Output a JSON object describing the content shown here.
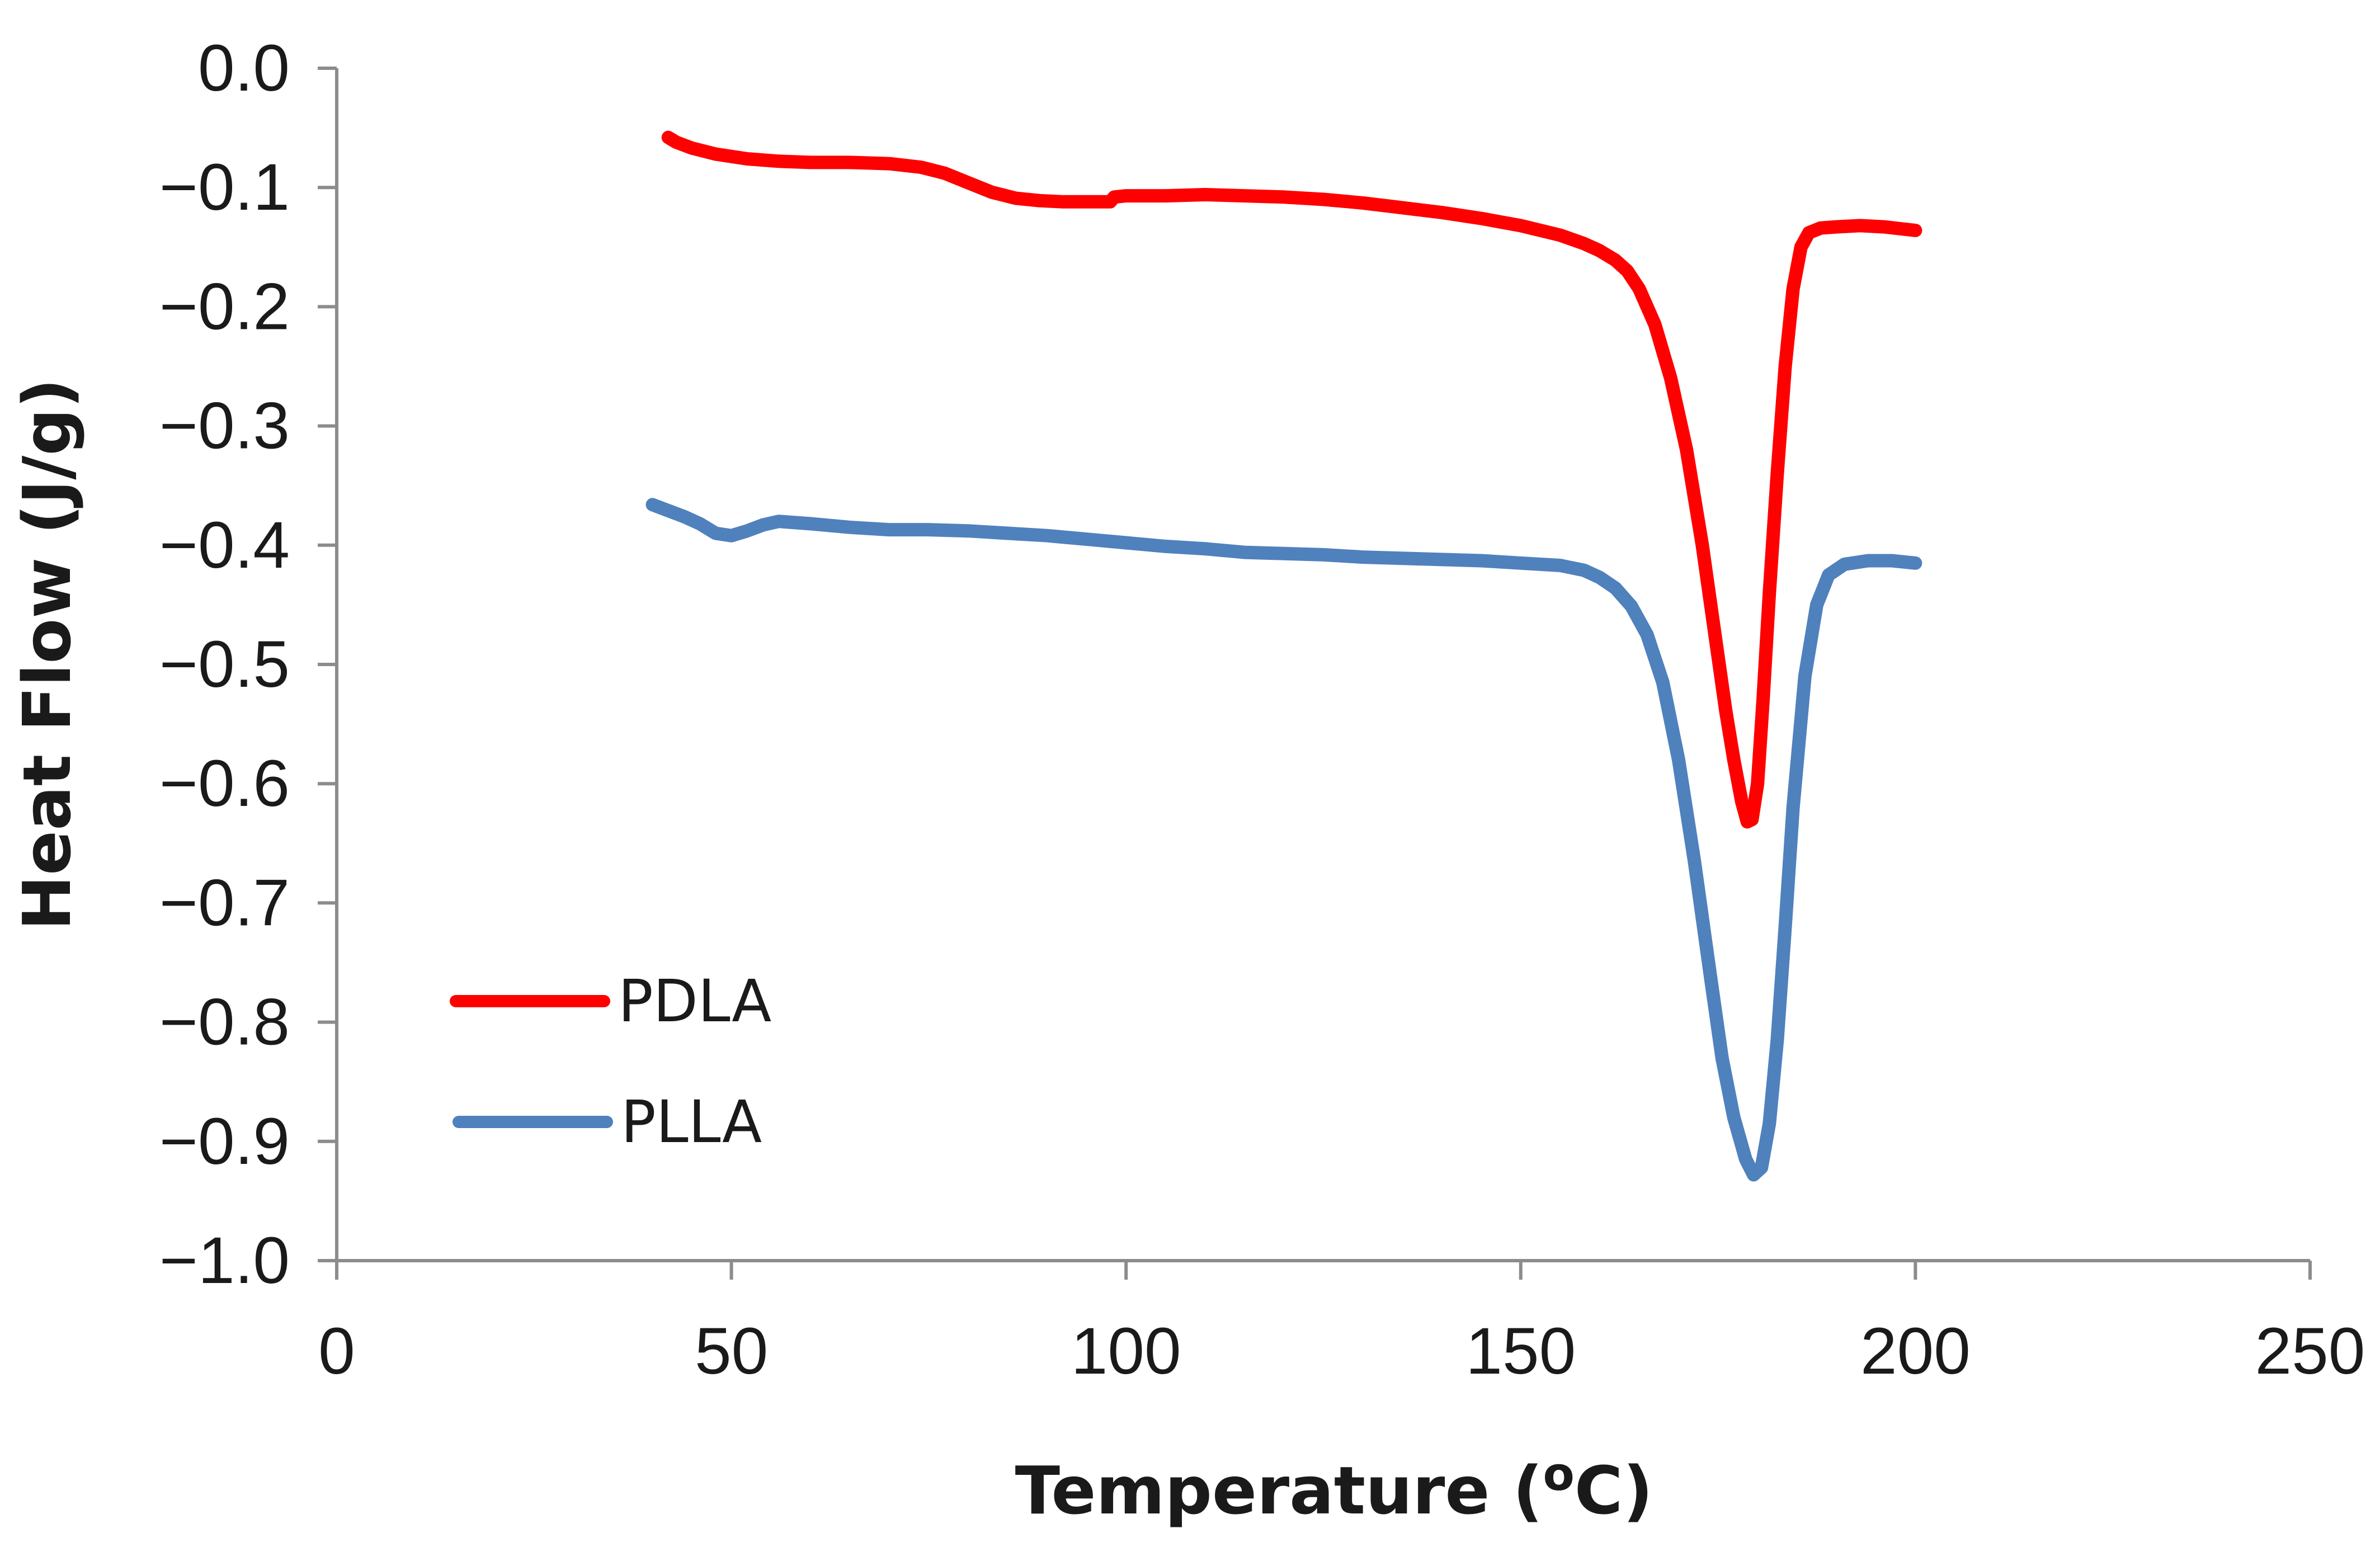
{
  "chart_data": {
    "type": "line",
    "title": "",
    "xlabel": "Temperature (",
    "xlabel_superscript": "o",
    "xlabel_suffix": "C)",
    "ylabel": "Heat Flow (J/g)",
    "xlim": [
      0,
      250
    ],
    "ylim": [
      -1.0,
      0.0
    ],
    "xticks": [
      0,
      50,
      100,
      150,
      200,
      250
    ],
    "yticks": [
      0.0,
      -0.1,
      -0.2,
      -0.3,
      -0.4,
      -0.5,
      -0.6,
      -0.7,
      -0.8,
      -0.9,
      -1.0
    ],
    "xtick_labels": [
      "0",
      "50",
      "100",
      "150",
      "200",
      "250"
    ],
    "ytick_labels": [
      "0.0",
      "−0.1",
      "−0.2",
      "−0.3",
      "−0.4",
      "−0.5",
      "−0.6",
      "−0.7",
      "−0.8",
      "−0.9",
      "−1.0"
    ],
    "grid": false,
    "legend_position": "bottom-left",
    "series": [
      {
        "name": "PDLA",
        "color": "#ff0000",
        "x": [
          42,
          43,
          45,
          48,
          52,
          56,
          60,
          65,
          70,
          74,
          77,
          80,
          83,
          86,
          89,
          92,
          95,
          98,
          98.5,
          100,
          105,
          110,
          115,
          120,
          125,
          130,
          135,
          140,
          145,
          150,
          155,
          158,
          160,
          162,
          163.5,
          165,
          167,
          169,
          171,
          173,
          174.5,
          176,
          177,
          178,
          178.7,
          179.3,
          180,
          180.7,
          181.5,
          182.5,
          183.5,
          184.5,
          185.5,
          186.5,
          188,
          190,
          193,
          196,
          200
        ],
        "y": [
          -0.058,
          -0.062,
          -0.067,
          -0.072,
          -0.076,
          -0.078,
          -0.079,
          -0.079,
          -0.08,
          -0.083,
          -0.088,
          -0.096,
          -0.104,
          -0.109,
          -0.111,
          -0.112,
          -0.112,
          -0.112,
          -0.108,
          -0.107,
          -0.107,
          -0.106,
          -0.107,
          -0.108,
          -0.11,
          -0.113,
          -0.117,
          -0.121,
          -0.126,
          -0.132,
          -0.14,
          -0.147,
          -0.153,
          -0.161,
          -0.17,
          -0.185,
          -0.215,
          -0.26,
          -0.32,
          -0.4,
          -0.47,
          -0.54,
          -0.58,
          -0.615,
          -0.632,
          -0.63,
          -0.6,
          -0.53,
          -0.44,
          -0.34,
          -0.25,
          -0.185,
          -0.15,
          -0.138,
          -0.134,
          -0.133,
          -0.132,
          -0.133,
          -0.136
        ]
      },
      {
        "name": "PLLA",
        "color": "#4f81bd",
        "x": [
          40,
          42,
          44,
          46,
          48,
          50,
          52,
          54,
          56,
          60,
          65,
          70,
          75,
          80,
          85,
          90,
          95,
          100,
          105,
          110,
          115,
          120,
          125,
          130,
          135,
          140,
          145,
          150,
          155,
          158,
          160,
          162,
          164,
          166,
          168,
          170,
          172,
          174,
          175.5,
          177,
          178.5,
          179.5,
          180.5,
          181.5,
          182.5,
          183.5,
          184.5,
          186,
          187.5,
          189,
          191,
          194,
          197,
          200
        ],
        "y": [
          -0.366,
          -0.371,
          -0.376,
          -0.382,
          -0.39,
          -0.392,
          -0.388,
          -0.383,
          -0.38,
          -0.382,
          -0.385,
          -0.387,
          -0.387,
          -0.388,
          -0.39,
          -0.392,
          -0.395,
          -0.398,
          -0.401,
          -0.403,
          -0.406,
          -0.407,
          -0.408,
          -0.41,
          -0.411,
          -0.412,
          -0.413,
          -0.415,
          -0.417,
          -0.421,
          -0.427,
          -0.436,
          -0.451,
          -0.475,
          -0.515,
          -0.58,
          -0.665,
          -0.76,
          -0.83,
          -0.88,
          -0.915,
          -0.928,
          -0.922,
          -0.885,
          -0.815,
          -0.72,
          -0.62,
          -0.51,
          -0.45,
          -0.425,
          -0.416,
          -0.413,
          -0.413,
          -0.415
        ]
      }
    ]
  }
}
